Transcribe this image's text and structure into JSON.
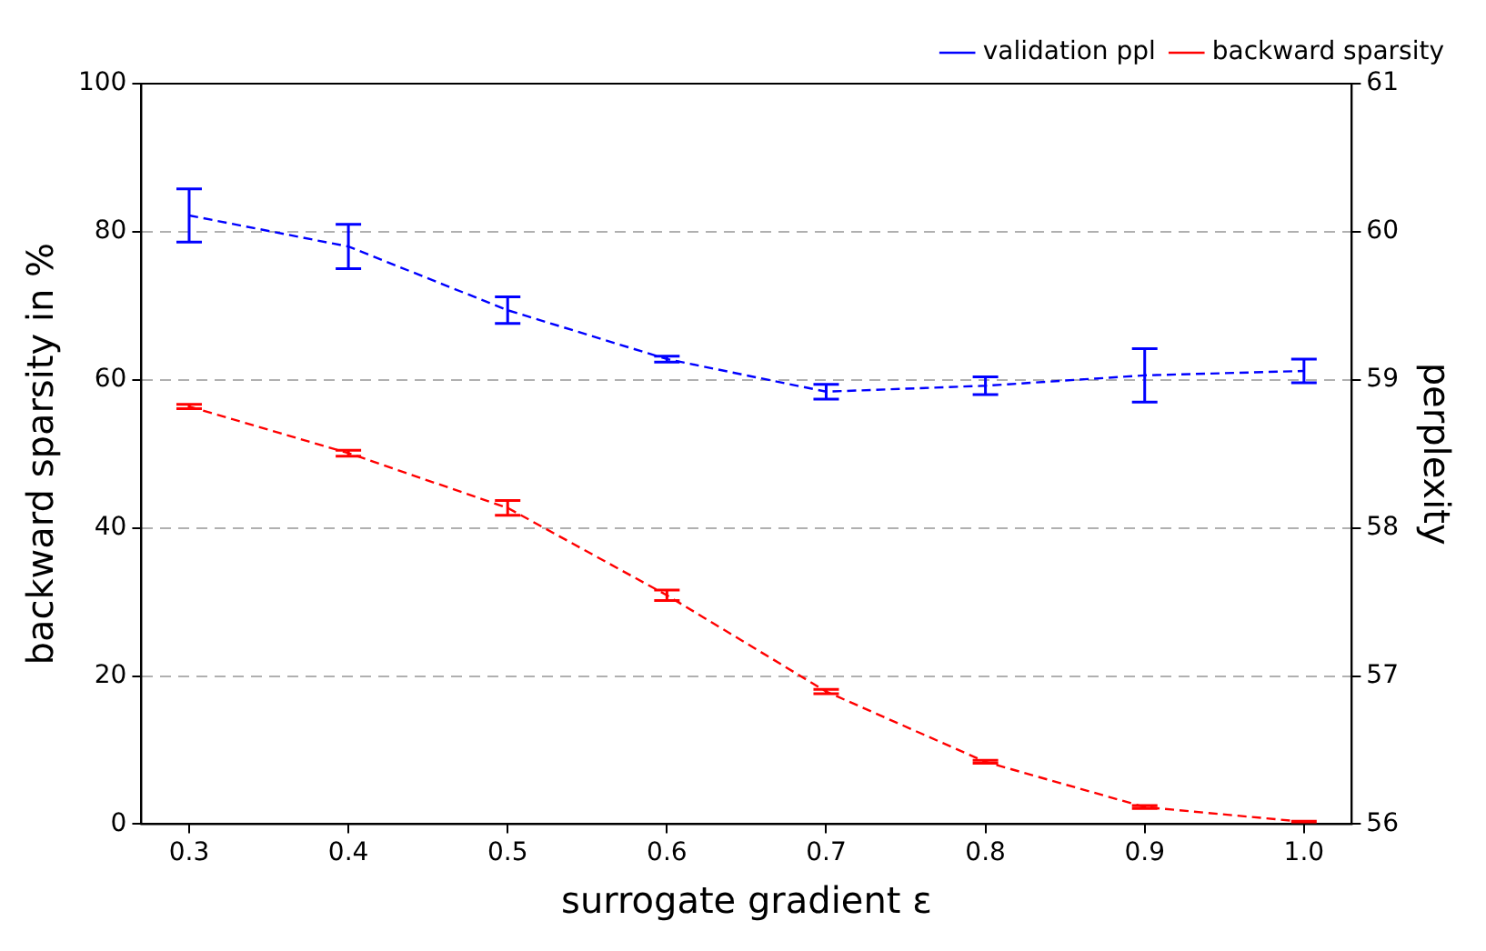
{
  "chart_data": {
    "type": "line",
    "xlabel": "surrogate gradient ε",
    "ylabel": "backward sparsity in %",
    "y2label": "perplexity",
    "x": [
      0.3,
      0.4,
      0.5,
      0.6,
      0.7,
      0.8,
      0.9,
      1.0
    ],
    "series": [
      {
        "name": "validation ppl",
        "color": "#0000ff",
        "axis": "y2",
        "values": [
          60.11,
          59.9,
          59.47,
          59.14,
          58.92,
          58.96,
          59.03,
          59.06
        ],
        "errors": [
          0.18,
          0.15,
          0.09,
          0.02,
          0.05,
          0.06,
          0.18,
          0.08
        ]
      },
      {
        "name": "backward sparsity",
        "color": "#ff0000",
        "values": [
          56.4,
          50.1,
          42.7,
          30.9,
          17.9,
          8.4,
          2.3,
          0.3
        ],
        "errors": [
          0.3,
          0.4,
          1,
          0.7,
          0.3,
          0.2,
          0.2,
          0.1
        ]
      }
    ],
    "xlim": [
      0.27,
      1.03
    ],
    "xticks": [
      0.3,
      0.4,
      0.5,
      0.6,
      0.7,
      0.8,
      0.9,
      {
        "value": 1,
        "label": "1.0"
      }
    ],
    "ylim": [
      0,
      100
    ],
    "yticks": [
      0,
      20,
      40,
      60,
      80,
      100
    ],
    "y2lim": [
      56,
      61
    ],
    "y2ticks": [
      56,
      57,
      58,
      59,
      60,
      61
    ],
    "grid": "y",
    "legend": "top right",
    "marker": "none",
    "line_style": "dashed"
  }
}
